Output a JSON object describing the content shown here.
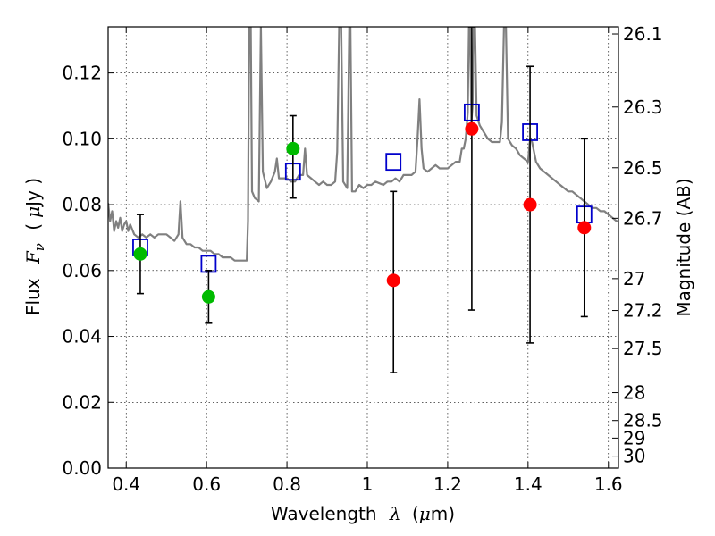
{
  "chart_data": {
    "type": "scatter",
    "title": "",
    "xlabel": "Wavelength",
    "xlabel_symbol": "λ",
    "xlabel_unit_prefix": "(",
    "xlabel_unit_mu": "μ",
    "xlabel_unit_rest": "m)",
    "ylabel": "Flux",
    "ylabel_symbol": "F",
    "ylabel_subscript": "ν",
    "ylabel_unit_prefix": "(",
    "ylabel_unit_mu": "μ",
    "ylabel_unit_rest": "Jy )",
    "y2label": "Magnitude (AB)",
    "xlim": [
      0.355,
      1.625
    ],
    "ylim": [
      0.0,
      0.134
    ],
    "x_scale": "linear",
    "y_scale": "linear",
    "grid": true,
    "xticks": [
      "0.4",
      "0.6",
      "0.8",
      "1",
      "1.2",
      "1.4",
      "1.6"
    ],
    "yticks": [
      "0.00",
      "0.02",
      "0.04",
      "0.06",
      "0.08",
      "0.10",
      "0.12"
    ],
    "y2ticks": [
      {
        "label": "26.1",
        "mag": 26.1
      },
      {
        "label": "26.3",
        "mag": 26.3
      },
      {
        "label": "26.5",
        "mag": 26.5
      },
      {
        "label": "26.7",
        "mag": 26.7
      },
      {
        "label": "27",
        "mag": 27.0
      },
      {
        "label": "27.2",
        "mag": 27.2
      },
      {
        "label": "27.5",
        "mag": 27.5
      },
      {
        "label": "28",
        "mag": 28.0
      },
      {
        "label": "28.5",
        "mag": 28.5
      },
      {
        "label": "29",
        "mag": 29.0
      },
      {
        "label": "30",
        "mag": 30.0
      }
    ],
    "colors": {
      "spectrum": "#808080",
      "model": "#0000cc",
      "detection": "#00bb00",
      "upper": "#ff0000",
      "errorbar": "#000000"
    },
    "series": [
      {
        "kind": "line",
        "points": [
          [
            0.355,
            0.0805
          ],
          [
            0.36,
            0.075
          ],
          [
            0.365,
            0.078
          ],
          [
            0.37,
            0.072
          ],
          [
            0.375,
            0.075
          ],
          [
            0.38,
            0.073
          ],
          [
            0.385,
            0.076
          ],
          [
            0.39,
            0.072
          ],
          [
            0.395,
            0.074
          ],
          [
            0.4,
            0.075
          ],
          [
            0.405,
            0.072
          ],
          [
            0.41,
            0.074
          ],
          [
            0.42,
            0.071
          ],
          [
            0.43,
            0.07
          ],
          [
            0.44,
            0.071
          ],
          [
            0.45,
            0.07
          ],
          [
            0.46,
            0.071
          ],
          [
            0.47,
            0.07
          ],
          [
            0.48,
            0.071
          ],
          [
            0.49,
            0.071
          ],
          [
            0.5,
            0.071
          ],
          [
            0.51,
            0.07
          ],
          [
            0.52,
            0.069
          ],
          [
            0.53,
            0.071
          ],
          [
            0.535,
            0.081
          ],
          [
            0.54,
            0.07
          ],
          [
            0.55,
            0.068
          ],
          [
            0.56,
            0.068
          ],
          [
            0.57,
            0.067
          ],
          [
            0.58,
            0.067
          ],
          [
            0.59,
            0.066
          ],
          [
            0.6,
            0.066
          ],
          [
            0.61,
            0.066
          ],
          [
            0.62,
            0.065
          ],
          [
            0.63,
            0.065
          ],
          [
            0.64,
            0.064
          ],
          [
            0.65,
            0.064
          ],
          [
            0.66,
            0.064
          ],
          [
            0.67,
            0.063
          ],
          [
            0.68,
            0.063
          ],
          [
            0.69,
            0.063
          ],
          [
            0.7,
            0.063
          ],
          [
            0.703,
            0.075
          ],
          [
            0.706,
            0.134
          ],
          [
            0.71,
            0.134
          ],
          [
            0.713,
            0.084
          ],
          [
            0.72,
            0.082
          ],
          [
            0.73,
            0.081
          ],
          [
            0.735,
            0.134
          ],
          [
            0.74,
            0.09
          ],
          [
            0.75,
            0.085
          ],
          [
            0.76,
            0.087
          ],
          [
            0.77,
            0.09
          ],
          [
            0.775,
            0.094
          ],
          [
            0.78,
            0.088
          ],
          [
            0.79,
            0.088
          ],
          [
            0.8,
            0.088
          ],
          [
            0.81,
            0.087
          ],
          [
            0.82,
            0.087
          ],
          [
            0.83,
            0.089
          ],
          [
            0.84,
            0.089
          ],
          [
            0.845,
            0.097
          ],
          [
            0.85,
            0.089
          ],
          [
            0.86,
            0.088
          ],
          [
            0.87,
            0.087
          ],
          [
            0.88,
            0.086
          ],
          [
            0.89,
            0.087
          ],
          [
            0.9,
            0.086
          ],
          [
            0.91,
            0.086
          ],
          [
            0.92,
            0.087
          ],
          [
            0.925,
            0.096
          ],
          [
            0.93,
            0.134
          ],
          [
            0.935,
            0.134
          ],
          [
            0.94,
            0.087
          ],
          [
            0.95,
            0.085
          ],
          [
            0.955,
            0.134
          ],
          [
            0.958,
            0.134
          ],
          [
            0.962,
            0.084
          ],
          [
            0.97,
            0.084
          ],
          [
            0.98,
            0.086
          ],
          [
            0.99,
            0.085
          ],
          [
            1.0,
            0.086
          ],
          [
            1.01,
            0.086
          ],
          [
            1.02,
            0.087
          ],
          [
            1.04,
            0.086
          ],
          [
            1.05,
            0.087
          ],
          [
            1.06,
            0.087
          ],
          [
            1.07,
            0.088
          ],
          [
            1.08,
            0.087
          ],
          [
            1.09,
            0.089
          ],
          [
            1.1,
            0.089
          ],
          [
            1.11,
            0.089
          ],
          [
            1.12,
            0.09
          ],
          [
            1.125,
            0.1
          ],
          [
            1.13,
            0.112
          ],
          [
            1.135,
            0.097
          ],
          [
            1.14,
            0.091
          ],
          [
            1.15,
            0.09
          ],
          [
            1.16,
            0.091
          ],
          [
            1.17,
            0.092
          ],
          [
            1.18,
            0.091
          ],
          [
            1.19,
            0.091
          ],
          [
            1.2,
            0.091
          ],
          [
            1.21,
            0.092
          ],
          [
            1.22,
            0.093
          ],
          [
            1.23,
            0.093
          ],
          [
            1.235,
            0.097
          ],
          [
            1.24,
            0.097
          ],
          [
            1.245,
            0.1
          ],
          [
            1.25,
            0.108
          ],
          [
            1.253,
            0.134
          ],
          [
            1.256,
            0.134
          ],
          [
            1.259,
            0.105
          ],
          [
            1.262,
            0.11
          ],
          [
            1.265,
            0.134
          ],
          [
            1.268,
            0.134
          ],
          [
            1.272,
            0.107
          ],
          [
            1.28,
            0.104
          ],
          [
            1.29,
            0.102
          ],
          [
            1.3,
            0.1
          ],
          [
            1.31,
            0.099
          ],
          [
            1.32,
            0.099
          ],
          [
            1.33,
            0.099
          ],
          [
            1.335,
            0.105
          ],
          [
            1.34,
            0.134
          ],
          [
            1.345,
            0.134
          ],
          [
            1.35,
            0.1
          ],
          [
            1.36,
            0.098
          ],
          [
            1.37,
            0.097
          ],
          [
            1.38,
            0.095
          ],
          [
            1.39,
            0.094
          ],
          [
            1.4,
            0.093
          ],
          [
            1.405,
            0.1
          ],
          [
            1.41,
            0.099
          ],
          [
            1.42,
            0.093
          ],
          [
            1.43,
            0.091
          ],
          [
            1.44,
            0.09
          ],
          [
            1.45,
            0.089
          ],
          [
            1.46,
            0.088
          ],
          [
            1.47,
            0.087
          ],
          [
            1.48,
            0.086
          ],
          [
            1.49,
            0.085
          ],
          [
            1.5,
            0.084
          ],
          [
            1.51,
            0.084
          ],
          [
            1.52,
            0.083
          ],
          [
            1.53,
            0.082
          ],
          [
            1.54,
            0.081
          ],
          [
            1.55,
            0.08
          ],
          [
            1.56,
            0.079
          ],
          [
            1.57,
            0.079
          ],
          [
            1.58,
            0.078
          ],
          [
            1.59,
            0.078
          ],
          [
            1.6,
            0.077
          ],
          [
            1.61,
            0.076
          ],
          [
            1.62,
            0.075
          ],
          [
            1.625,
            0.075
          ]
        ]
      },
      {
        "kind": "open-square",
        "x": [
          0.435,
          0.605,
          0.815,
          1.065,
          1.26,
          1.405,
          1.54
        ],
        "y": [
          0.067,
          0.062,
          0.09,
          0.093,
          0.108,
          0.102,
          0.077
        ]
      },
      {
        "kind": "filled-circle",
        "x": [
          0.435,
          0.605,
          0.815
        ],
        "y": [
          0.065,
          0.052,
          0.097
        ],
        "yerr_low": [
          0.053,
          0.044,
          0.082
        ],
        "yerr_high": [
          0.077,
          0.06,
          0.107
        ]
      },
      {
        "kind": "filled-circle",
        "x": [
          1.065,
          1.26,
          1.405,
          1.54
        ],
        "y": [
          0.057,
          0.103,
          0.08,
          0.073
        ],
        "yerr_low": [
          0.029,
          0.048,
          0.038,
          0.046
        ],
        "yerr_high": [
          0.084,
          0.134,
          0.122,
          0.1
        ]
      }
    ]
  }
}
